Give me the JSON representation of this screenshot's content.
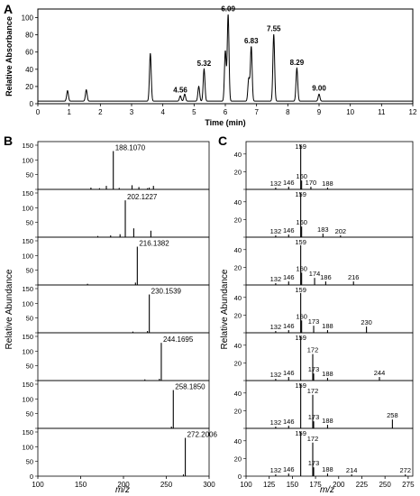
{
  "figure": {
    "panel_labels": [
      "A",
      "B",
      "C"
    ],
    "xlabel_b": "m/z",
    "xlabel_c": "m/z",
    "ylabel_b": "Relative Abundance",
    "ylabel_c": "Relative Abundance"
  },
  "chart_data": [
    {
      "type": "line",
      "panel": "A",
      "xlabel": "Time (min)",
      "ylabel": "Relative Absorbance",
      "xlim": [
        0,
        12
      ],
      "ylim": [
        0,
        110
      ],
      "x_ticks": [
        0,
        1,
        2,
        3,
        4,
        5,
        6,
        7,
        8,
        9,
        10,
        11,
        12
      ],
      "y_ticks": [
        0,
        20,
        40,
        60,
        80,
        100
      ],
      "grid": false,
      "peaks": [
        {
          "x": 0.95,
          "y": 12
        },
        {
          "x": 1.55,
          "y": 13
        },
        {
          "x": 3.6,
          "y": 55
        },
        {
          "x": 4.56,
          "y": 6
        },
        {
          "x": 4.7,
          "y": 8
        },
        {
          "x": 5.15,
          "y": 17
        },
        {
          "x": 5.32,
          "y": 37
        },
        {
          "x": 6.0,
          "y": 58
        },
        {
          "x": 6.09,
          "y": 100
        },
        {
          "x": 6.75,
          "y": 26
        },
        {
          "x": 6.83,
          "y": 63
        },
        {
          "x": 7.55,
          "y": 77
        },
        {
          "x": 8.29,
          "y": 38
        },
        {
          "x": 9.0,
          "y": 8
        }
      ],
      "peak_labels": [
        {
          "text": "4.56",
          "x": 4.56,
          "y": 6
        },
        {
          "text": "5.32",
          "x": 5.32,
          "y": 37
        },
        {
          "text": "6.09",
          "x": 6.09,
          "y": 100
        },
        {
          "text": "6.83",
          "x": 6.83,
          "y": 63
        },
        {
          "text": "7.55",
          "x": 7.55,
          "y": 77
        },
        {
          "text": "8.29",
          "x": 8.29,
          "y": 38
        },
        {
          "text": "9.00",
          "x": 9.0,
          "y": 8
        }
      ]
    },
    {
      "type": "bar",
      "panel": "B",
      "xlabel": "m/z",
      "ylabel": "Relative Abundance",
      "xlim": [
        100,
        300
      ],
      "x_ticks": [
        100,
        150,
        200,
        250,
        300
      ],
      "ylim": [
        0,
        150
      ],
      "y_ticks": [
        0,
        50,
        100,
        150
      ],
      "spectra": [
        {
          "label": "188.1070",
          "peaks": [
            [
              188.107,
              130
            ],
            [
              180,
              12
            ],
            [
              210,
              14
            ],
            [
              218,
              8
            ],
            [
              162,
              6
            ],
            [
              230,
              6
            ],
            [
              235,
              12
            ],
            [
              228,
              4
            ],
            [
              195,
              5
            ],
            [
              172,
              4
            ]
          ]
        },
        {
          "label": "202.1227",
          "peaks": [
            [
              202.1227,
              125
            ],
            [
              212,
              30
            ],
            [
              232,
              22
            ],
            [
              196,
              10
            ],
            [
              185,
              6
            ],
            [
              170,
              4
            ]
          ]
        },
        {
          "label": "216.1382",
          "peaks": [
            [
              216.1382,
              130
            ],
            [
              214,
              8
            ],
            [
              158,
              4
            ]
          ]
        },
        {
          "label": "230.1539",
          "peaks": [
            [
              230.1539,
              130
            ],
            [
              228,
              6
            ],
            [
              211,
              4
            ]
          ]
        },
        {
          "label": "244.1695",
          "peaks": [
            [
              244.1695,
              128
            ],
            [
              242,
              6
            ],
            [
              225,
              4
            ]
          ]
        },
        {
          "label": "258.1850",
          "peaks": [
            [
              258.185,
              130
            ],
            [
              256,
              6
            ]
          ]
        },
        {
          "label": "272.2006",
          "peaks": [
            [
              272.2006,
              130
            ],
            [
              270,
              6
            ]
          ]
        }
      ]
    },
    {
      "type": "bar",
      "panel": "C",
      "xlabel": "m/z",
      "ylabel": "Relative Abundance",
      "xlim": [
        100,
        280
      ],
      "x_ticks": [
        100,
        125,
        150,
        175,
        200,
        225,
        250,
        275
      ],
      "ylim": [
        0,
        50
      ],
      "y_ticks": [
        0,
        20,
        40
      ],
      "spectra": [
        {
          "peaks": [
            [
              132,
              2
            ],
            [
              146,
              3
            ],
            [
              159,
              50
            ],
            [
              160,
              10
            ],
            [
              170,
              3
            ],
            [
              188,
              2
            ]
          ],
          "labels": [
            "132",
            "146",
            "159",
            "160",
            "170",
            "188"
          ]
        },
        {
          "peaks": [
            [
              132,
              2
            ],
            [
              146,
              3
            ],
            [
              159,
              50
            ],
            [
              160,
              12
            ],
            [
              183,
              4
            ],
            [
              202,
              2
            ]
          ],
          "labels": [
            "132",
            "146",
            "159",
            "160",
            "183",
            "202"
          ]
        },
        {
          "peaks": [
            [
              132,
              2
            ],
            [
              146,
              4
            ],
            [
              159,
              45
            ],
            [
              160,
              14
            ],
            [
              174,
              8
            ],
            [
              186,
              4
            ],
            [
              216,
              4
            ]
          ],
          "labels": [
            "132",
            "146",
            "159",
            "160",
            "174",
            "186",
            "216"
          ]
        },
        {
          "peaks": [
            [
              132,
              2
            ],
            [
              146,
              3
            ],
            [
              159,
              45
            ],
            [
              160,
              14
            ],
            [
              173,
              8
            ],
            [
              188,
              3
            ],
            [
              230,
              7
            ]
          ],
          "labels": [
            "132",
            "146",
            "159",
            "160",
            "173",
            "188",
            "230"
          ]
        },
        {
          "peaks": [
            [
              132,
              2
            ],
            [
              146,
              4
            ],
            [
              159,
              50
            ],
            [
              172,
              30
            ],
            [
              173,
              8
            ],
            [
              188,
              3
            ],
            [
              244,
              4
            ]
          ],
          "labels": [
            "132",
            "146",
            "159",
            "172",
            "173",
            "188",
            "244"
          ]
        },
        {
          "peaks": [
            [
              132,
              2
            ],
            [
              146,
              3
            ],
            [
              159,
              50
            ],
            [
              172,
              38
            ],
            [
              173,
              8
            ],
            [
              188,
              4
            ],
            [
              258,
              10
            ]
          ],
          "labels": [
            "132",
            "146",
            "159",
            "172",
            "173",
            "188",
            "258"
          ]
        },
        {
          "peaks": [
            [
              132,
              2
            ],
            [
              146,
              3
            ],
            [
              159,
              50
            ],
            [
              172,
              38
            ],
            [
              173,
              10
            ],
            [
              188,
              3
            ],
            [
              214,
              2
            ],
            [
              272,
              2
            ]
          ],
          "labels": [
            "132",
            "146",
            "159",
            "172",
            "173",
            "188",
            "214",
            "272"
          ]
        }
      ]
    }
  ]
}
